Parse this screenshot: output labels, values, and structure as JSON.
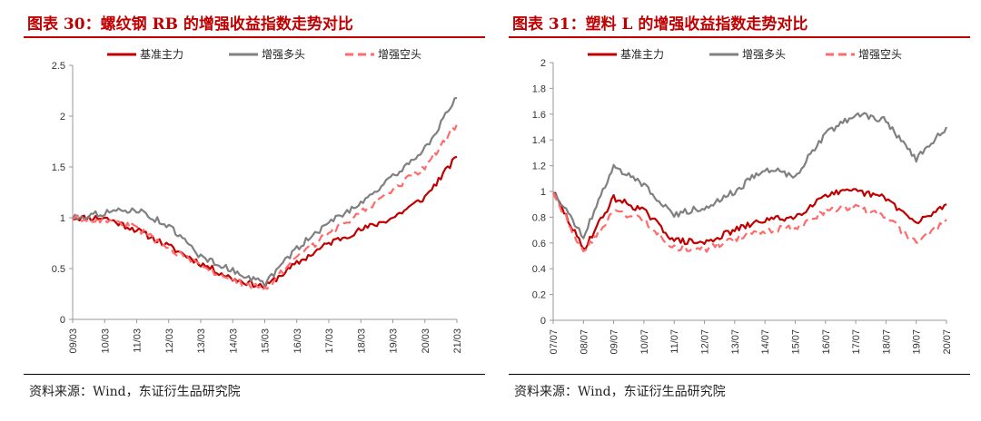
{
  "chart_data": [
    {
      "type": "line",
      "title": "图表 30：螺纹钢 RB 的增强收益指数走势对比",
      "xlabel": "",
      "ylabel": "",
      "ylim": [
        0,
        2.5
      ],
      "yticks": [
        "0",
        "0.5",
        "1",
        "1.5",
        "2",
        "2.5"
      ],
      "x": [
        "09/03",
        "10/03",
        "11/03",
        "12/03",
        "13/03",
        "14/03",
        "15/03",
        "16/03",
        "17/03",
        "18/03",
        "19/03",
        "20/03",
        "21/03"
      ],
      "legend_position": "top",
      "grid": false,
      "series": [
        {
          "name": "基准主力",
          "color": "#c00000",
          "dash": "solid",
          "values": [
            1.0,
            1.0,
            0.88,
            0.72,
            0.55,
            0.4,
            0.32,
            0.55,
            0.75,
            0.88,
            1.0,
            1.2,
            1.6
          ]
        },
        {
          "name": "增强多头",
          "color": "#808080",
          "dash": "solid",
          "values": [
            1.0,
            1.05,
            1.08,
            0.92,
            0.62,
            0.48,
            0.35,
            0.7,
            0.95,
            1.15,
            1.4,
            1.68,
            2.18
          ]
        },
        {
          "name": "增强空头",
          "color": "#ff6b6b",
          "dash": "dashed",
          "values": [
            1.0,
            0.98,
            0.9,
            0.7,
            0.52,
            0.38,
            0.3,
            0.6,
            0.85,
            1.05,
            1.28,
            1.5,
            1.92
          ]
        }
      ]
    },
    {
      "type": "line",
      "title": "图表 31：塑料 L 的增强收益指数走势对比",
      "xlabel": "",
      "ylabel": "",
      "ylim": [
        0,
        2
      ],
      "yticks": [
        "0",
        "0.2",
        "0.4",
        "0.6",
        "0.8",
        "1",
        "1.2",
        "1.4",
        "1.6",
        "1.8",
        "2"
      ],
      "x": [
        "07/07",
        "08/07",
        "09/07",
        "10/07",
        "11/07",
        "12/07",
        "13/07",
        "14/07",
        "15/07",
        "16/07",
        "17/07",
        "18/07",
        "19/07",
        "20/07"
      ],
      "legend_position": "top",
      "grid": false,
      "series": [
        {
          "name": "基准主力",
          "color": "#c00000",
          "dash": "solid",
          "values": [
            1.0,
            0.55,
            0.95,
            0.85,
            0.62,
            0.6,
            0.7,
            0.78,
            0.8,
            0.98,
            1.0,
            0.95,
            0.75,
            0.9
          ]
        },
        {
          "name": "增强多头",
          "color": "#808080",
          "dash": "solid",
          "values": [
            1.0,
            0.65,
            1.2,
            1.05,
            0.82,
            0.88,
            1.0,
            1.18,
            1.12,
            1.45,
            1.6,
            1.55,
            1.25,
            1.5
          ]
        },
        {
          "name": "增强空头",
          "color": "#ff6b6b",
          "dash": "dashed",
          "values": [
            1.0,
            0.52,
            0.85,
            0.78,
            0.56,
            0.55,
            0.63,
            0.7,
            0.72,
            0.85,
            0.88,
            0.8,
            0.6,
            0.78
          ]
        }
      ]
    }
  ],
  "source_text": "资料来源：Wind，东证衍生品研究院"
}
